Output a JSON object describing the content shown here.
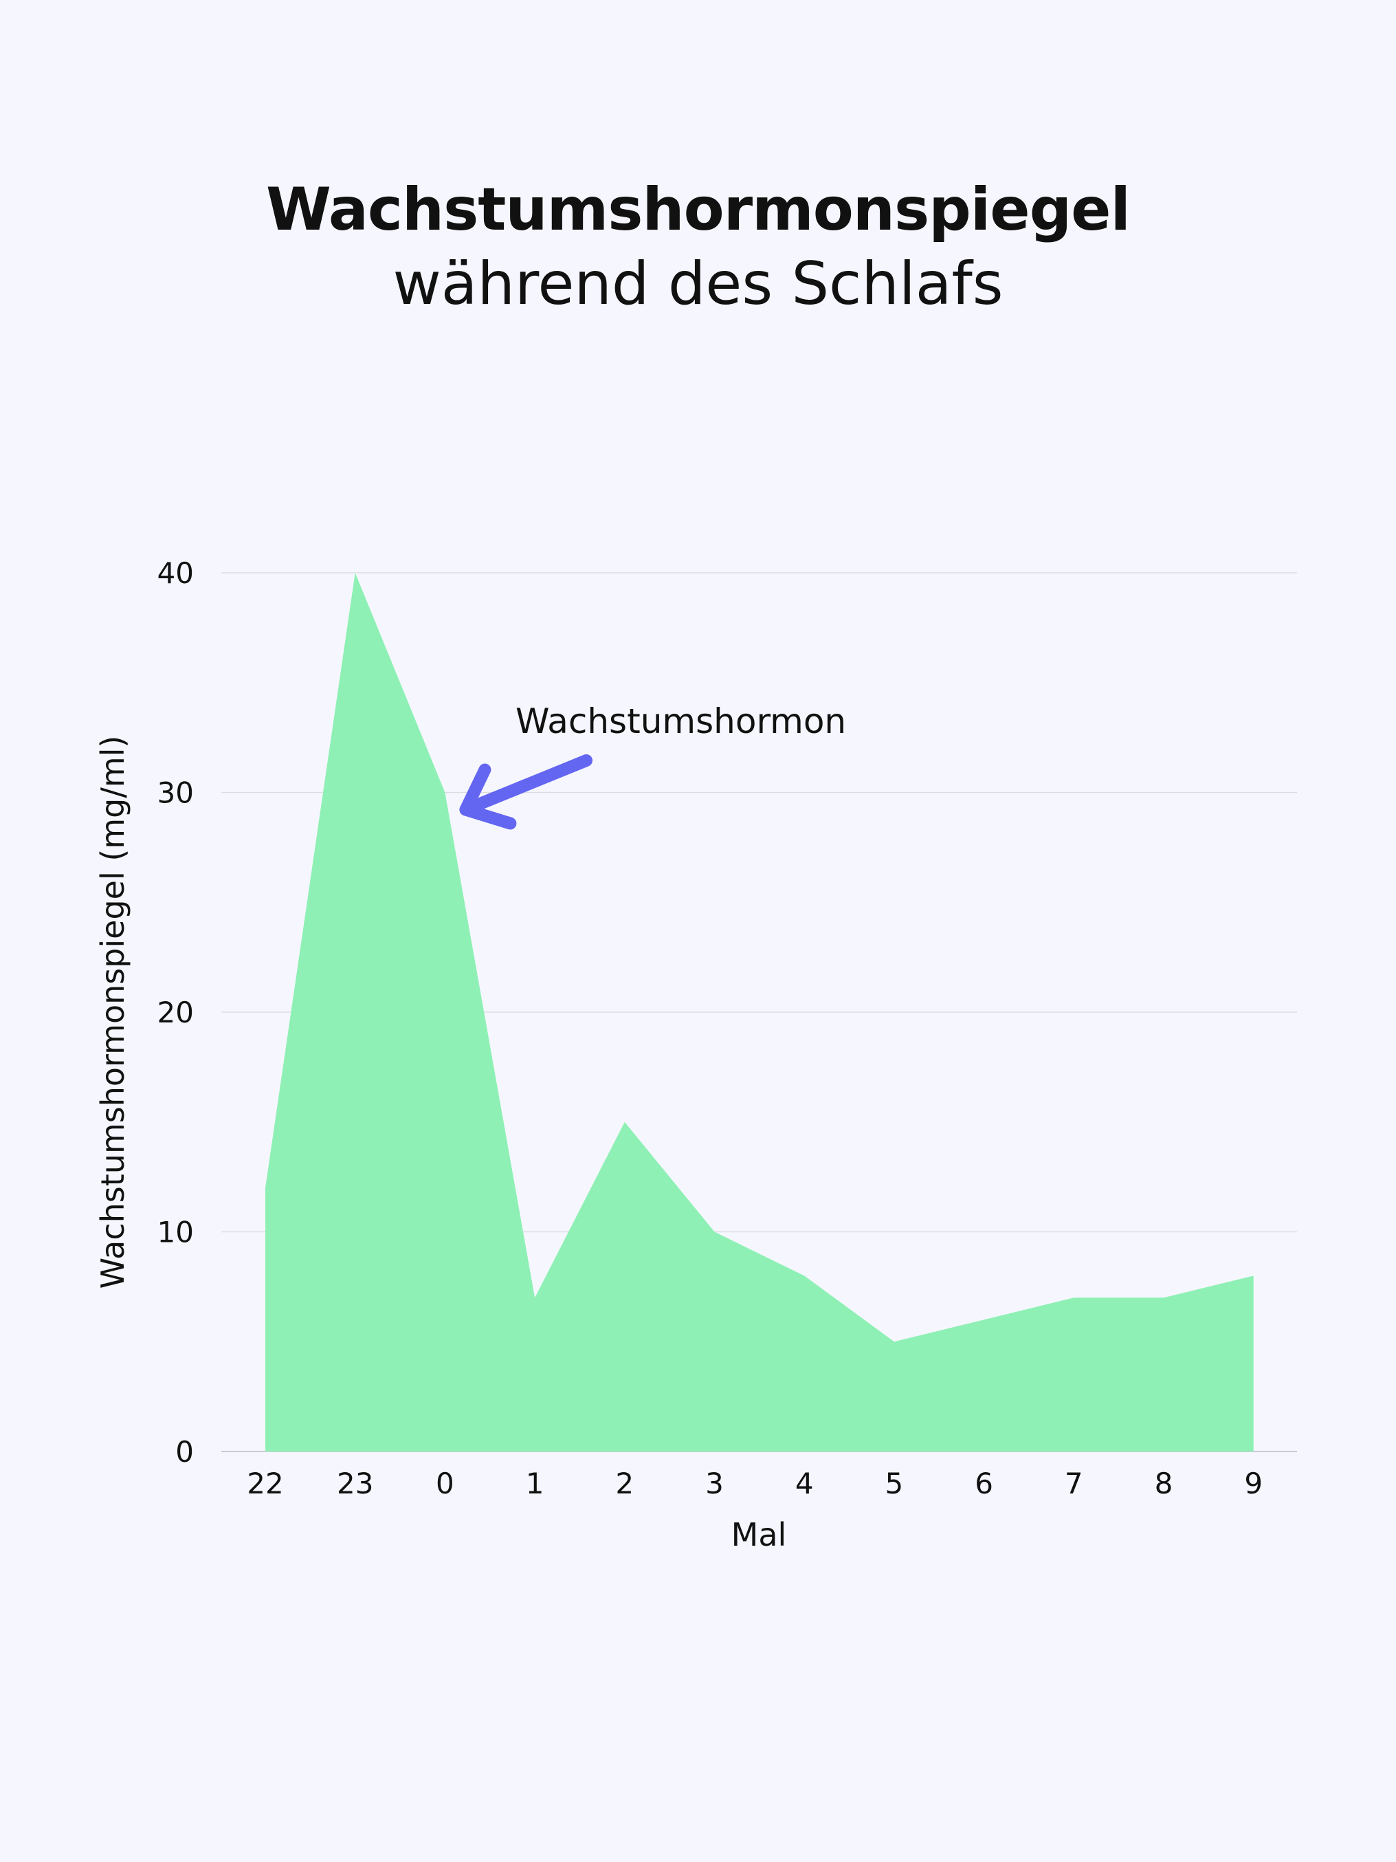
{
  "colors": {
    "background": "#f6f7fe",
    "area_fill": "#8ff0b5",
    "arrow": "#6366f1",
    "grid": "#dcdde3",
    "text": "#111111"
  },
  "chart_data": {
    "type": "area",
    "title": "Wachstumshormonspiegel",
    "subtitle": "während des Schlafs",
    "xlabel": "Mal",
    "ylabel": "Wachstumshormonspiegel (mg/ml)",
    "categories": [
      "22",
      "23",
      "0",
      "1",
      "2",
      "3",
      "4",
      "5",
      "6",
      "7",
      "8",
      "9"
    ],
    "series": [
      {
        "values": [
          12,
          40,
          30,
          7,
          15,
          10,
          8,
          5,
          6,
          7,
          7,
          8
        ]
      }
    ],
    "ylim": [
      0,
      40
    ],
    "yticks": [
      "0",
      "10",
      "20",
      "30",
      "40"
    ],
    "grid": true,
    "annotation": {
      "text": "Wachstumshormon",
      "points_to_category": "0",
      "points_to_value": 30
    }
  }
}
